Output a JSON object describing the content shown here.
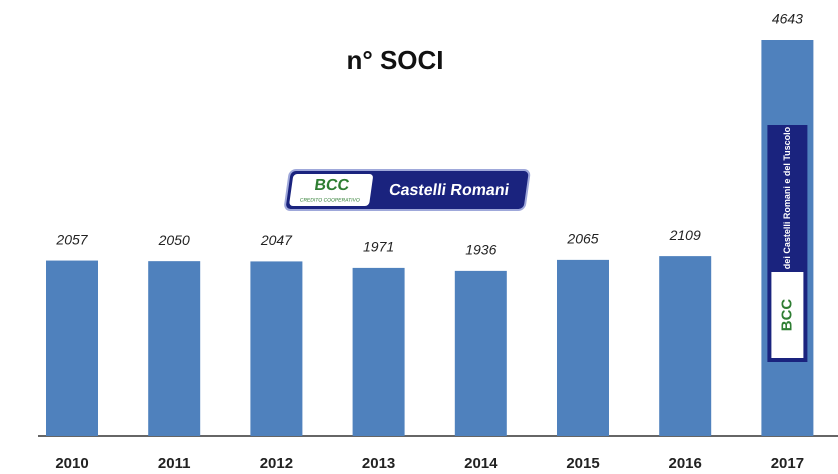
{
  "chart_data": {
    "type": "bar",
    "title": "n° SOCI",
    "categories": [
      "2010",
      "2011",
      "2012",
      "2013",
      "2014",
      "2015",
      "2016",
      "2017"
    ],
    "values": [
      2057,
      2050,
      2047,
      1971,
      1936,
      2065,
      2109,
      4643
    ],
    "color": "#4f81bd",
    "annotations": [
      "BCC",
      "CREDITO COOPERATIVO",
      "Castelli Romani",
      "dei Castelli Romani e del Tuscolo"
    ]
  }
}
